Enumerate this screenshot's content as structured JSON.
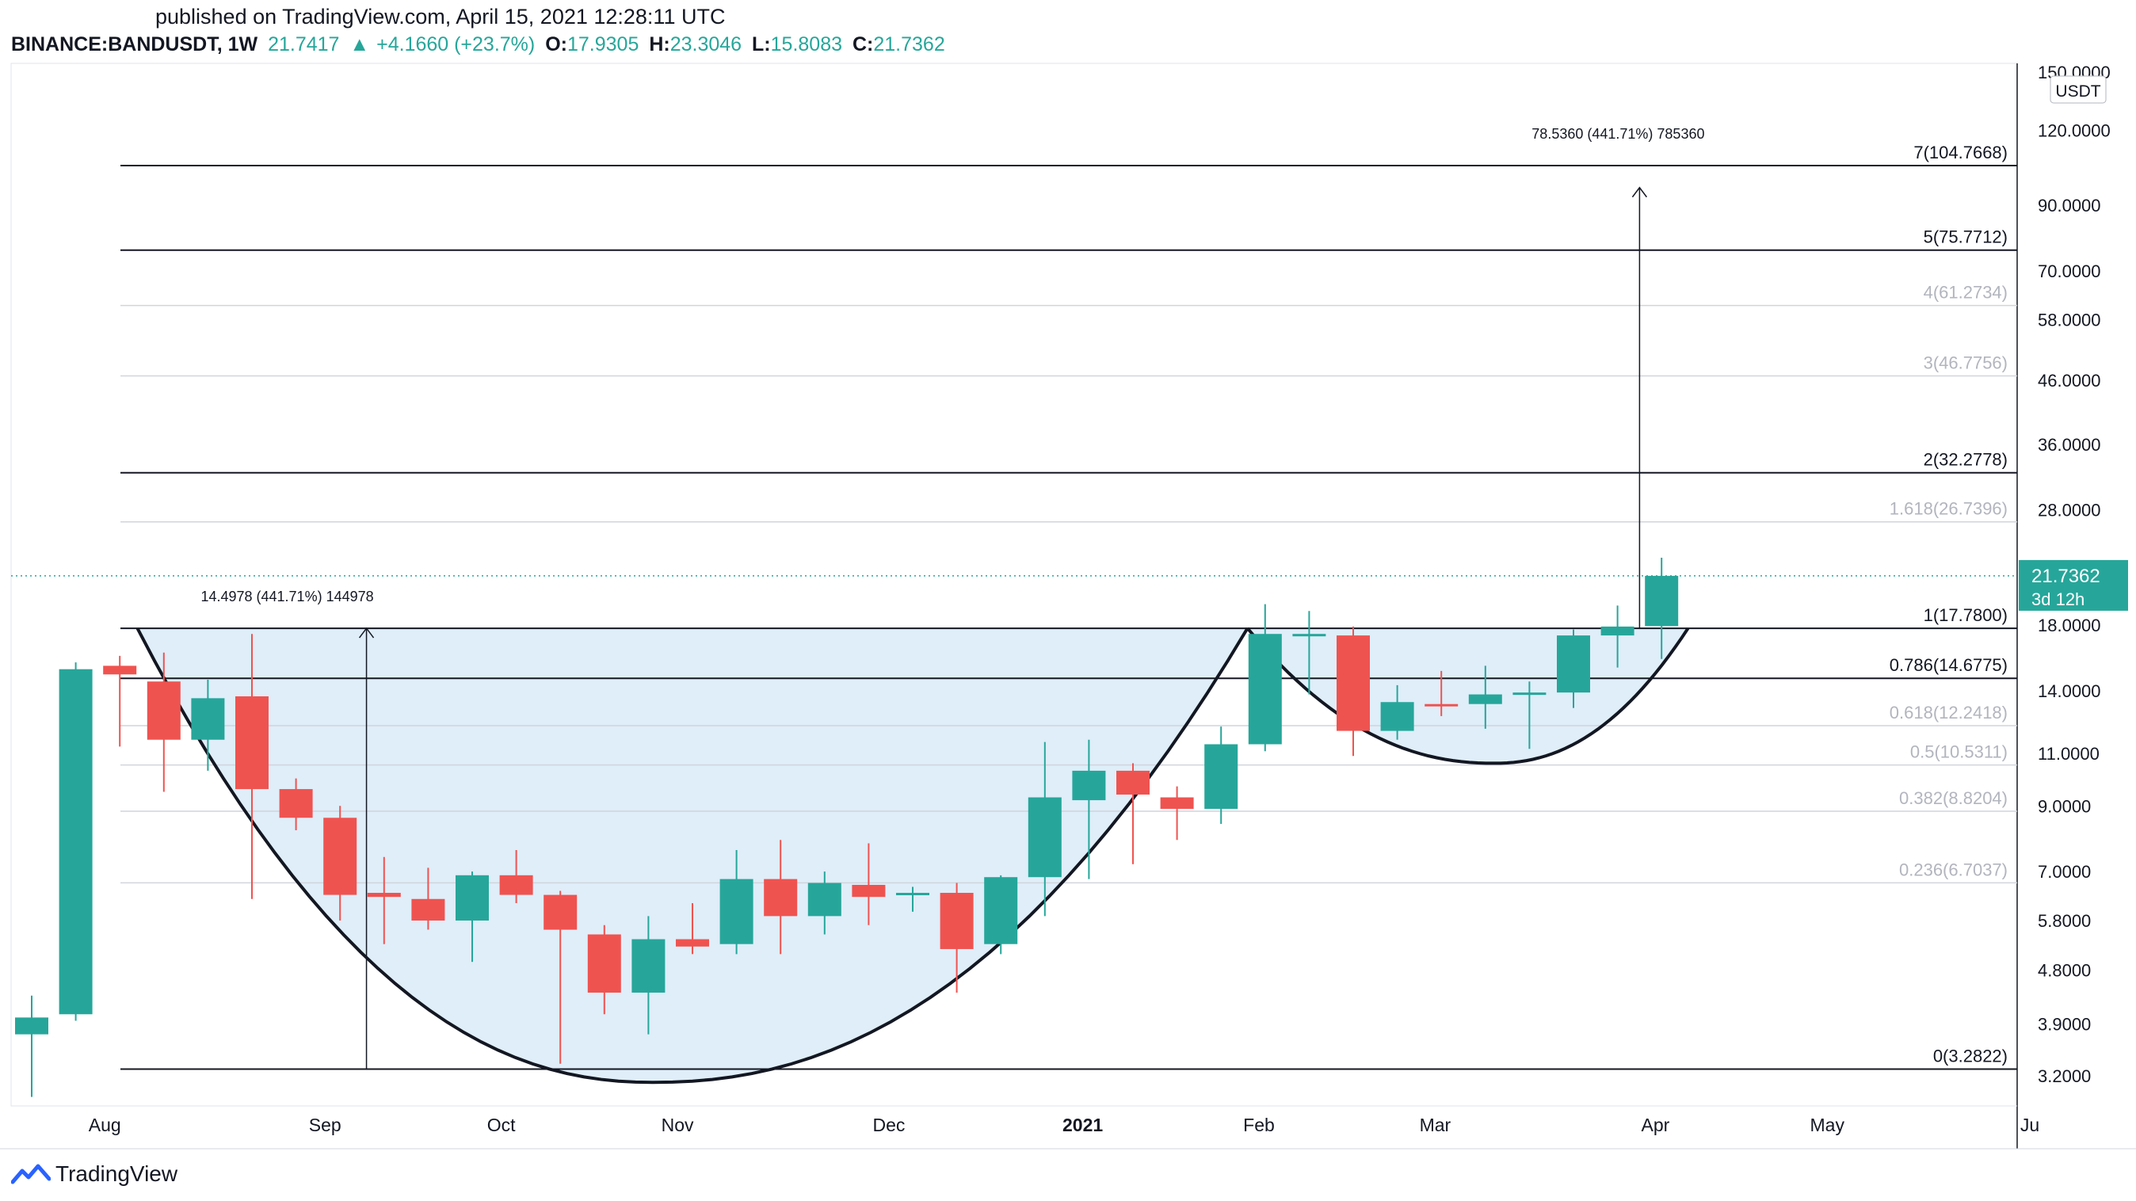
{
  "header": {
    "published": "published on TradingView.com, April 15, 2021 12:28:11 UTC",
    "symbol": "BINANCE:BANDUSDT, 1W",
    "last": "21.7417",
    "change": "+4.1660 (+23.7%)",
    "open_label": "O:",
    "open": "17.9305",
    "high_label": "H:",
    "high": "23.3046",
    "low_label": "L:",
    "low": "15.8083",
    "close_label": "C:",
    "close": "21.7362",
    "up_arrow": "▲"
  },
  "brand": {
    "name": "TradingView",
    "icon": "tradingview-logo-icon"
  },
  "colors": {
    "up": "#26a69a",
    "down": "#ef5350",
    "cup_fill": "#dcecf8",
    "fib_strong": "#131722",
    "fib_weak": "#b2b5be",
    "price_label_bg": "#26a69a",
    "current_price_line": "#26a69a"
  },
  "chart_data": {
    "type": "candlestick",
    "title": "",
    "ylabel": "",
    "y_scale": "log",
    "ylim": [
      2.85,
      155
    ],
    "currency_badge": "USDT",
    "y_ticks": [
      {
        "value": 150,
        "label": "150.0000"
      },
      {
        "value": 120,
        "label": "120.0000"
      },
      {
        "value": 90,
        "label": "90.0000"
      },
      {
        "value": 70,
        "label": "70.0000"
      },
      {
        "value": 58,
        "label": "58.0000"
      },
      {
        "value": 46,
        "label": "46.0000"
      },
      {
        "value": 36,
        "label": "36.0000"
      },
      {
        "value": 28,
        "label": "28.0000"
      },
      {
        "value": 18,
        "label": "18.0000"
      },
      {
        "value": 14,
        "label": "14.0000"
      },
      {
        "value": 11,
        "label": "11.0000"
      },
      {
        "value": 9,
        "label": "9.0000"
      },
      {
        "value": 7,
        "label": "7.0000"
      },
      {
        "value": 5.8,
        "label": "5.8000"
      },
      {
        "value": 4.8,
        "label": "4.8000"
      },
      {
        "value": 3.9,
        "label": "3.9000"
      },
      {
        "value": 3.2,
        "label": "3.2000"
      }
    ],
    "x_ticks": [
      {
        "label": "Aug",
        "week": 1.3,
        "bold": false
      },
      {
        "label": "Sep",
        "week": 6.3,
        "bold": false
      },
      {
        "label": "Oct",
        "week": 10.3,
        "bold": false
      },
      {
        "label": "Nov",
        "week": 14.3,
        "bold": false
      },
      {
        "label": "Dec",
        "week": 19.1,
        "bold": false
      },
      {
        "label": "2021",
        "week": 23.5,
        "bold": true
      },
      {
        "label": "Feb",
        "week": 27.5,
        "bold": false
      },
      {
        "label": "Mar",
        "week": 31.5,
        "bold": false
      },
      {
        "label": "Apr",
        "week": 36.5,
        "bold": false
      },
      {
        "label": "May",
        "week": 40.4,
        "bold": false
      },
      {
        "label": "Ju",
        "week": 45,
        "bold": false
      }
    ],
    "candles": [
      {
        "o": 3.75,
        "h": 4.35,
        "l": 2.95,
        "c": 4.0
      },
      {
        "o": 4.05,
        "h": 15.6,
        "l": 3.95,
        "c": 15.2
      },
      {
        "o": 15.4,
        "h": 16.0,
        "l": 11.3,
        "c": 14.9
      },
      {
        "o": 14.5,
        "h": 16.2,
        "l": 9.5,
        "c": 11.6
      },
      {
        "o": 11.6,
        "h": 14.6,
        "l": 10.3,
        "c": 13.6
      },
      {
        "o": 13.7,
        "h": 17.4,
        "l": 6.3,
        "c": 9.6
      },
      {
        "o": 9.6,
        "h": 10.0,
        "l": 8.2,
        "c": 8.6
      },
      {
        "o": 8.6,
        "h": 9.0,
        "l": 5.8,
        "c": 6.4
      },
      {
        "o": 6.45,
        "h": 7.4,
        "l": 5.3,
        "c": 6.35
      },
      {
        "o": 6.3,
        "h": 7.1,
        "l": 5.6,
        "c": 5.8
      },
      {
        "o": 5.8,
        "h": 7.0,
        "l": 4.95,
        "c": 6.9
      },
      {
        "o": 6.9,
        "h": 7.6,
        "l": 6.2,
        "c": 6.4
      },
      {
        "o": 6.4,
        "h": 6.5,
        "l": 3.35,
        "c": 5.6
      },
      {
        "o": 5.5,
        "h": 5.7,
        "l": 4.05,
        "c": 4.4
      },
      {
        "o": 4.4,
        "h": 5.9,
        "l": 3.75,
        "c": 5.4
      },
      {
        "o": 5.4,
        "h": 6.2,
        "l": 5.1,
        "c": 5.25
      },
      {
        "o": 5.3,
        "h": 7.6,
        "l": 5.1,
        "c": 6.8
      },
      {
        "o": 6.8,
        "h": 7.9,
        "l": 5.1,
        "c": 5.9
      },
      {
        "o": 5.9,
        "h": 7.0,
        "l": 5.5,
        "c": 6.7
      },
      {
        "o": 6.65,
        "h": 7.8,
        "l": 5.7,
        "c": 6.35
      },
      {
        "o": 6.4,
        "h": 6.6,
        "l": 6.0,
        "c": 6.45
      },
      {
        "o": 6.45,
        "h": 6.7,
        "l": 4.4,
        "c": 5.2
      },
      {
        "o": 5.3,
        "h": 6.9,
        "l": 5.1,
        "c": 6.85
      },
      {
        "o": 6.85,
        "h": 11.5,
        "l": 5.9,
        "c": 9.3
      },
      {
        "o": 9.2,
        "h": 11.6,
        "l": 6.8,
        "c": 10.3
      },
      {
        "o": 10.3,
        "h": 10.6,
        "l": 7.2,
        "c": 9.4
      },
      {
        "o": 9.3,
        "h": 9.7,
        "l": 7.9,
        "c": 8.9
      },
      {
        "o": 8.9,
        "h": 12.2,
        "l": 8.4,
        "c": 11.4
      },
      {
        "o": 11.4,
        "h": 19.5,
        "l": 11.1,
        "c": 17.4
      },
      {
        "o": 17.3,
        "h": 19.0,
        "l": 13.8,
        "c": 17.4
      },
      {
        "o": 17.3,
        "h": 17.9,
        "l": 10.9,
        "c": 12.0
      },
      {
        "o": 12.0,
        "h": 14.3,
        "l": 11.6,
        "c": 13.4
      },
      {
        "o": 13.3,
        "h": 15.1,
        "l": 12.7,
        "c": 13.2
      },
      {
        "o": 13.3,
        "h": 15.4,
        "l": 12.1,
        "c": 13.8
      },
      {
        "o": 13.85,
        "h": 14.5,
        "l": 11.2,
        "c": 13.9
      },
      {
        "o": 13.9,
        "h": 17.7,
        "l": 13.1,
        "c": 17.3
      },
      {
        "o": 17.3,
        "h": 19.4,
        "l": 15.3,
        "c": 17.9
      },
      {
        "o": 17.93,
        "h": 23.3,
        "l": 15.81,
        "c": 21.74
      }
    ],
    "fib_levels": [
      {
        "ratio": "7",
        "value": 104.7668,
        "label": "7(104.7668)",
        "strong": true
      },
      {
        "ratio": "5",
        "value": 75.7712,
        "label": "5(75.7712)",
        "strong": true
      },
      {
        "ratio": "4",
        "value": 61.2734,
        "label": "4(61.2734)",
        "strong": false
      },
      {
        "ratio": "3",
        "value": 46.7756,
        "label": "3(46.7756)",
        "strong": false
      },
      {
        "ratio": "2",
        "value": 32.2778,
        "label": "2(32.2778)",
        "strong": true
      },
      {
        "ratio": "1.618",
        "value": 26.7396,
        "label": "1.618(26.7396)",
        "strong": false
      },
      {
        "ratio": "1",
        "value": 17.78,
        "label": "1(17.7800)",
        "strong": true
      },
      {
        "ratio": "0.786",
        "value": 14.6775,
        "label": "0.786(14.6775)",
        "strong": true
      },
      {
        "ratio": "0.618",
        "value": 12.2418,
        "label": "0.618(12.2418)",
        "strong": false
      },
      {
        "ratio": "0.5",
        "value": 10.5311,
        "label": "0.5(10.5311)",
        "strong": false
      },
      {
        "ratio": "0.382",
        "value": 8.8204,
        "label": "0.382(8.8204)",
        "strong": false
      },
      {
        "ratio": "0.236",
        "value": 6.7037,
        "label": "0.236(6.7037)",
        "strong": false
      },
      {
        "ratio": "0",
        "value": 3.2822,
        "label": "0(3.2822)",
        "strong": true
      }
    ],
    "measurements": [
      {
        "label": "14.4978 (441.71%) 144978",
        "week": 7.6,
        "from": 3.2822,
        "to": 17.78
      },
      {
        "label": "78.5360 (441.71%) 785360",
        "week": 36.5,
        "from": 17.78,
        "to": 96.3
      }
    ],
    "cup_pattern": {
      "cup": {
        "left_week": 2.4,
        "bottom_week": 14.1,
        "right_week": 27.6,
        "rim": 17.78,
        "bottom": 3.12
      },
      "handle": {
        "left_week": 27.6,
        "bottom_week": 33.2,
        "right_week": 37.6,
        "rim": 17.78,
        "bottom": 10.6
      }
    },
    "current_price": {
      "value": 21.7362,
      "label": "21.7362",
      "countdown": "3d 12h"
    }
  }
}
